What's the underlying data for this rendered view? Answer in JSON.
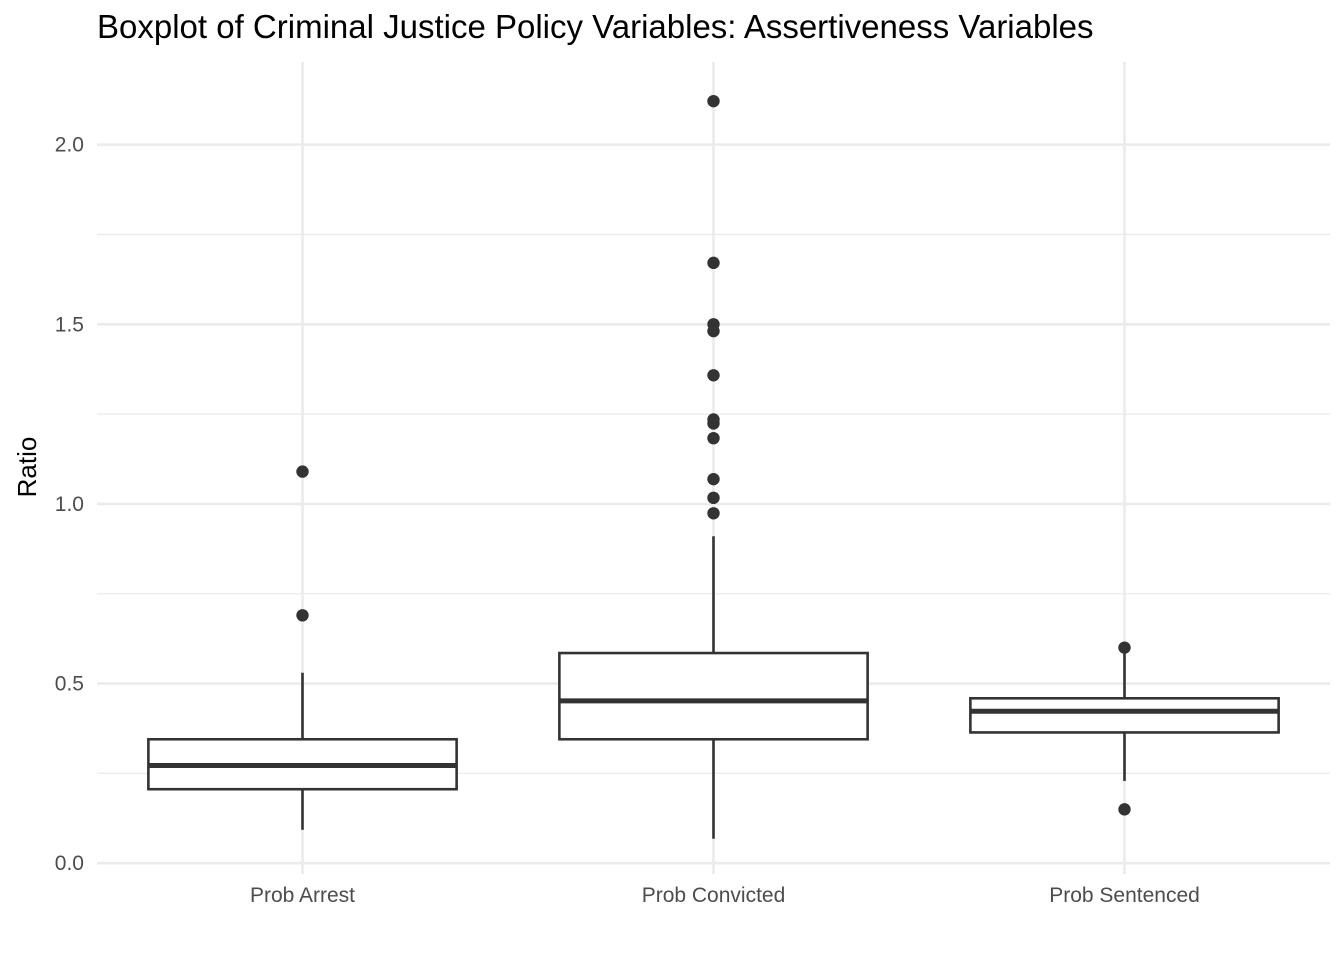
{
  "chart_data": {
    "type": "boxplot",
    "title": "Boxplot of Criminal Justice Policy Variables: Assertiveness Variables",
    "xlabel": "",
    "ylabel": "Ratio",
    "ylim": [
      -0.03,
      2.23
    ],
    "y_ticks": [
      0.0,
      0.5,
      1.0,
      1.5,
      2.0
    ],
    "y_tick_labels": [
      "0.0",
      "0.5",
      "1.0",
      "1.5",
      "2.0"
    ],
    "categories": [
      "Prob Arrest",
      "Prob Convicted",
      "Prob Sentenced"
    ],
    "grid": true,
    "legend": "none",
    "colors": {
      "box_stroke": "#333333",
      "outlier": "#333333",
      "grid": "#ebebeb",
      "background": "#ffffff"
    },
    "boxes": [
      {
        "category": "Prob Arrest",
        "whisker_low": 0.093,
        "q1": 0.206,
        "median": 0.272,
        "q3": 0.345,
        "whisker_high": 0.53,
        "outliers": [
          0.69,
          1.09
        ]
      },
      {
        "category": "Prob Convicted",
        "whisker_low": 0.068,
        "q1": 0.345,
        "median": 0.452,
        "q3": 0.585,
        "whisker_high": 0.91,
        "outliers": [
          0.974,
          1.017,
          1.069,
          1.183,
          1.224,
          1.235,
          1.358,
          1.481,
          1.5,
          1.671,
          2.121
        ]
      },
      {
        "category": "Prob Sentenced",
        "whisker_low": 0.229,
        "q1": 0.364,
        "median": 0.423,
        "q3": 0.459,
        "whisker_high": 0.589,
        "outliers": [
          0.15,
          0.6
        ]
      }
    ]
  }
}
